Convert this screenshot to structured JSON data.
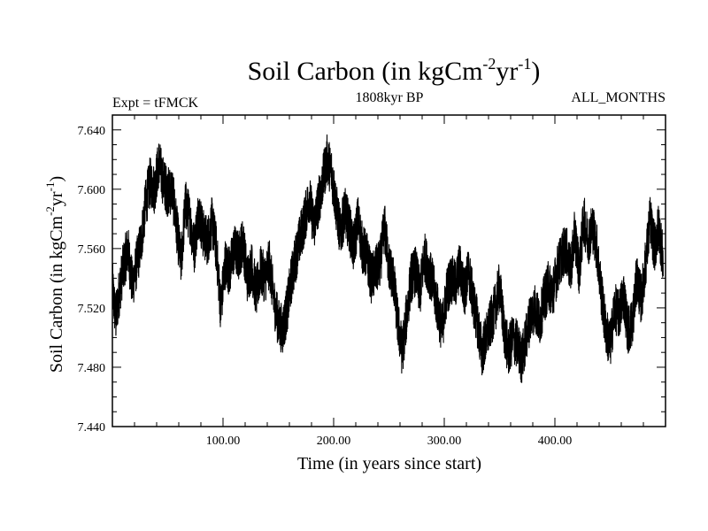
{
  "chart_data": {
    "type": "line",
    "title_main": "Soil Carbon (in kgCm",
    "title_sup1": "-2",
    "title_mid": "yr",
    "title_sup2": "-1",
    "title_end": ")",
    "left_label": "Expt = tFMCK",
    "center_label": "1808kyr BP",
    "right_label": "ALL_MONTHS",
    "xlabel": "Time (in years since start)",
    "ylabel_main": "Soil Carbon (in kgCm",
    "ylabel_sup1": "-2",
    "ylabel_mid": "yr",
    "ylabel_sup2": "-1",
    "ylabel_end": ")",
    "xlim": [
      0,
      500
    ],
    "ylim": [
      7.44,
      7.65
    ],
    "x_ticks": [
      100,
      200,
      300,
      400
    ],
    "x_tick_labels": [
      "100.00",
      "200.00",
      "300.00",
      "400.00"
    ],
    "y_ticks": [
      7.44,
      7.48,
      7.52,
      7.56,
      7.6,
      7.64
    ],
    "y_tick_labels": [
      "7.440",
      "7.480",
      "7.520",
      "7.560",
      "7.600",
      "7.640"
    ],
    "series": [
      {
        "x": [
          0,
          3,
          6,
          10,
          14,
          18,
          22,
          26,
          30,
          34,
          38,
          42,
          46,
          50,
          54,
          58,
          62,
          66,
          70,
          74,
          78,
          82,
          86,
          90,
          94,
          98,
          102,
          106,
          110,
          114,
          118,
          122,
          126,
          130,
          134,
          138,
          142,
          146,
          150,
          154,
          158,
          162,
          166,
          170,
          174,
          178,
          182,
          186,
          190,
          194,
          198,
          202,
          206,
          210,
          214,
          218,
          222,
          226,
          230,
          234,
          238,
          242,
          246,
          250,
          254,
          258,
          262,
          266,
          270,
          274,
          278,
          282,
          286,
          290,
          294,
          298,
          302,
          306,
          310,
          314,
          318,
          322,
          326,
          330,
          334,
          338,
          342,
          346,
          350,
          354,
          358,
          362,
          366,
          370,
          374,
          378,
          382,
          386,
          390,
          394,
          398,
          402,
          406,
          410,
          414,
          418,
          422,
          426,
          430,
          434,
          438,
          442,
          446,
          450,
          454,
          458,
          462,
          466,
          470,
          474,
          478,
          482,
          486,
          490,
          494,
          498
        ],
        "y": [
          7.535,
          7.512,
          7.53,
          7.548,
          7.56,
          7.535,
          7.55,
          7.565,
          7.59,
          7.605,
          7.6,
          7.618,
          7.605,
          7.598,
          7.6,
          7.575,
          7.55,
          7.59,
          7.58,
          7.56,
          7.585,
          7.57,
          7.565,
          7.578,
          7.56,
          7.52,
          7.55,
          7.545,
          7.56,
          7.555,
          7.565,
          7.54,
          7.548,
          7.53,
          7.545,
          7.54,
          7.55,
          7.525,
          7.51,
          7.505,
          7.52,
          7.54,
          7.555,
          7.568,
          7.58,
          7.595,
          7.575,
          7.59,
          7.605,
          7.62,
          7.612,
          7.59,
          7.57,
          7.585,
          7.575,
          7.56,
          7.58,
          7.56,
          7.555,
          7.54,
          7.545,
          7.55,
          7.575,
          7.548,
          7.54,
          7.51,
          7.49,
          7.515,
          7.54,
          7.545,
          7.53,
          7.555,
          7.545,
          7.535,
          7.52,
          7.505,
          7.53,
          7.54,
          7.535,
          7.548,
          7.53,
          7.545,
          7.525,
          7.51,
          7.49,
          7.5,
          7.51,
          7.52,
          7.535,
          7.505,
          7.49,
          7.5,
          7.495,
          7.485,
          7.5,
          7.515,
          7.52,
          7.51,
          7.525,
          7.535,
          7.53,
          7.545,
          7.555,
          7.56,
          7.545,
          7.57,
          7.545,
          7.58,
          7.565,
          7.575,
          7.56,
          7.53,
          7.505,
          7.495,
          7.52,
          7.515,
          7.53,
          7.505,
          7.51,
          7.54,
          7.525,
          7.55,
          7.58,
          7.56,
          7.575,
          7.55
        ]
      }
    ]
  }
}
